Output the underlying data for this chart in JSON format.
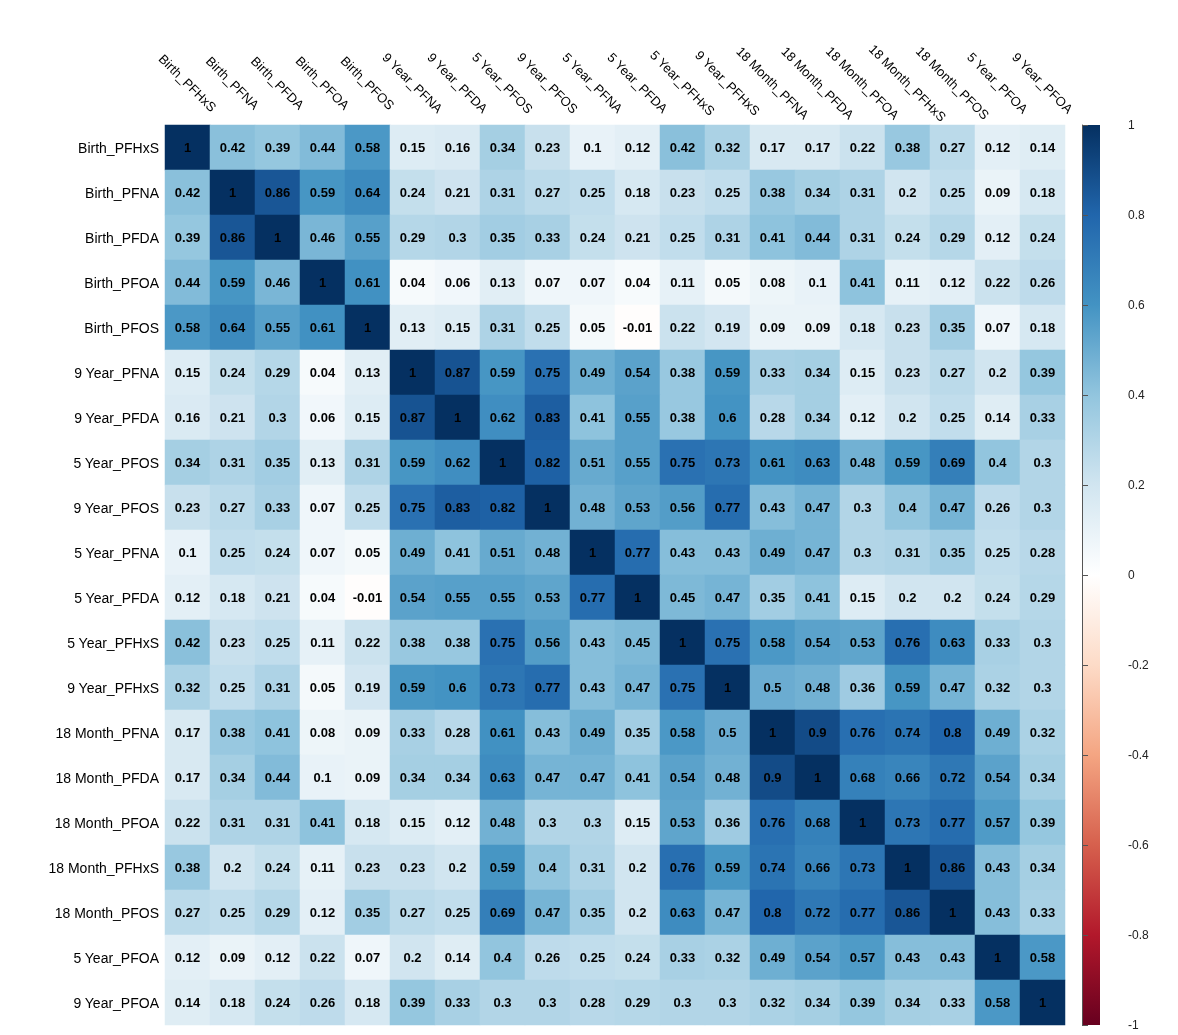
{
  "chart_data": {
    "type": "heatmap",
    "categories": [
      "Birth_PFHxS",
      "Birth_PFNA",
      "Birth_PFDA",
      "Birth_PFOA",
      "Birth_PFOS",
      "9 Year_PFNA",
      "9 Year_PFDA",
      "5 Year_PFOS",
      "9 Year_PFOS",
      "5 Year_PFNA",
      "5 Year_PFDA",
      "5 Year_PFHxS",
      "9 Year_PFHxS",
      "18 Month_PFNA",
      "18 Month_PFDA",
      "18 Month_PFOA",
      "18 Month_PFHxS",
      "18 Month_PFOS",
      "5 Year_PFOA",
      "9 Year_PFOA"
    ],
    "y_categories": [
      "Birth_PFHxS",
      "Birth_PFNA",
      "Birth_PFDA",
      "Birth_PFOA",
      "Birth_PFOS",
      "9 Year_PFNA",
      "9 Year_PFDA",
      "5 Year_PFOS",
      "9 Year_PFOS",
      "5 Year_PFNA",
      "5 Year_PFDA",
      "5 Year_PFHxS",
      "9 Year_PFHxS",
      "18 Month_PFNA",
      "18 Month_PFDA",
      "18 Month_PFOA",
      "18 Month_PFHxS",
      "18 Month_PFOS",
      "5 Year_PFOA",
      "9 Year_PFOA"
    ],
    "cells": [
      [
        1,
        0.42,
        0.39,
        0.44,
        0.58,
        0.15,
        0.16,
        0.34,
        0.23,
        0.1,
        0.12,
        0.42,
        0.32,
        0.17,
        0.17,
        0.22,
        0.38,
        0.27,
        0.12,
        0.14
      ],
      [
        0.42,
        1,
        0.86,
        0.59,
        0.64,
        0.24,
        0.21,
        0.31,
        0.27,
        0.25,
        0.18,
        0.23,
        0.25,
        0.38,
        0.34,
        0.31,
        0.2,
        0.25,
        0.09,
        0.18
      ],
      [
        0.39,
        0.86,
        1,
        0.46,
        0.55,
        0.29,
        0.3,
        0.35,
        0.33,
        0.24,
        0.21,
        0.25,
        0.31,
        0.41,
        0.44,
        0.31,
        0.24,
        0.29,
        0.12,
        0.24
      ],
      [
        0.44,
        0.59,
        0.46,
        1,
        0.61,
        0.04,
        0.06,
        0.13,
        0.07,
        0.07,
        0.04,
        0.11,
        0.05,
        0.08,
        0.1,
        0.41,
        0.11,
        0.12,
        0.22,
        0.26
      ],
      [
        0.58,
        0.64,
        0.55,
        0.61,
        1,
        0.13,
        0.15,
        0.31,
        0.25,
        0.05,
        -0.01,
        0.22,
        0.19,
        0.09,
        0.09,
        0.18,
        0.23,
        0.35,
        0.07,
        0.18
      ],
      [
        0.15,
        0.24,
        0.29,
        0.04,
        0.13,
        1,
        0.87,
        0.59,
        0.75,
        0.49,
        0.54,
        0.38,
        0.59,
        0.33,
        0.34,
        0.15,
        0.23,
        0.27,
        0.2,
        0.39
      ],
      [
        0.16,
        0.21,
        0.3,
        0.06,
        0.15,
        0.87,
        1,
        0.62,
        0.83,
        0.41,
        0.55,
        0.38,
        0.6,
        0.28,
        0.34,
        0.12,
        0.2,
        0.25,
        0.14,
        0.33
      ],
      [
        0.34,
        0.31,
        0.35,
        0.13,
        0.31,
        0.59,
        0.62,
        1,
        0.82,
        0.51,
        0.55,
        0.75,
        0.73,
        0.61,
        0.63,
        0.48,
        0.59,
        0.69,
        0.4,
        0.3
      ],
      [
        0.23,
        0.27,
        0.33,
        0.07,
        0.25,
        0.75,
        0.83,
        0.82,
        1,
        0.48,
        0.53,
        0.56,
        0.77,
        0.43,
        0.47,
        0.3,
        0.4,
        0.47,
        0.26,
        0.3
      ],
      [
        0.1,
        0.25,
        0.24,
        0.07,
        0.05,
        0.49,
        0.41,
        0.51,
        0.48,
        1,
        0.77,
        0.43,
        0.43,
        0.49,
        0.47,
        0.3,
        0.31,
        0.35,
        0.25,
        0.28
      ],
      [
        0.12,
        0.18,
        0.21,
        0.04,
        -0.01,
        0.54,
        0.55,
        0.55,
        0.53,
        0.77,
        1,
        0.45,
        0.47,
        0.35,
        0.41,
        0.15,
        0.2,
        0.2,
        0.24,
        0.29
      ],
      [
        0.42,
        0.23,
        0.25,
        0.11,
        0.22,
        0.38,
        0.38,
        0.75,
        0.56,
        0.43,
        0.45,
        1,
        0.75,
        0.58,
        0.54,
        0.53,
        0.76,
        0.63,
        0.33,
        0.3
      ],
      [
        0.32,
        0.25,
        0.31,
        0.05,
        0.19,
        0.59,
        0.6,
        0.73,
        0.77,
        0.43,
        0.47,
        0.75,
        1,
        0.5,
        0.48,
        0.36,
        0.59,
        0.47,
        0.32,
        0.3
      ],
      [
        0.17,
        0.38,
        0.41,
        0.08,
        0.09,
        0.33,
        0.28,
        0.61,
        0.43,
        0.49,
        0.35,
        0.58,
        0.5,
        1,
        0.9,
        0.76,
        0.74,
        0.8,
        0.49,
        0.32
      ],
      [
        0.17,
        0.34,
        0.44,
        0.1,
        0.09,
        0.34,
        0.34,
        0.63,
        0.47,
        0.47,
        0.41,
        0.54,
        0.48,
        0.9,
        1,
        0.68,
        0.66,
        0.72,
        0.54,
        0.34
      ],
      [
        0.22,
        0.31,
        0.31,
        0.41,
        0.18,
        0.15,
        0.12,
        0.48,
        0.3,
        0.3,
        0.15,
        0.53,
        0.36,
        0.76,
        0.68,
        1,
        0.73,
        0.77,
        0.57,
        0.39
      ],
      [
        0.38,
        0.2,
        0.24,
        0.11,
        0.23,
        0.23,
        0.2,
        0.59,
        0.4,
        0.31,
        0.2,
        0.76,
        0.59,
        0.74,
        0.66,
        0.73,
        1,
        0.86,
        0.43,
        0.34
      ],
      [
        0.27,
        0.25,
        0.29,
        0.12,
        0.35,
        0.27,
        0.25,
        0.69,
        0.47,
        0.35,
        0.2,
        0.63,
        0.47,
        0.8,
        0.72,
        0.77,
        0.86,
        1,
        0.43,
        0.33
      ],
      [
        0.12,
        0.09,
        0.12,
        0.22,
        0.07,
        0.2,
        0.14,
        0.4,
        0.26,
        0.25,
        0.24,
        0.33,
        0.32,
        0.49,
        0.54,
        0.57,
        0.43,
        0.43,
        1,
        0.58
      ],
      [
        0.14,
        0.18,
        0.24,
        0.26,
        0.18,
        0.39,
        0.33,
        0.3,
        0.3,
        0.28,
        0.29,
        0.3,
        0.3,
        0.32,
        0.34,
        0.39,
        0.34,
        0.33,
        0.58,
        1
      ]
    ],
    "clim": [
      -1,
      1
    ],
    "cticks": [
      -1,
      -0.8,
      -0.6,
      -0.4,
      -0.2,
      0,
      0.2,
      0.4,
      0.6,
      0.8,
      1
    ],
    "data_labels": true
  }
}
